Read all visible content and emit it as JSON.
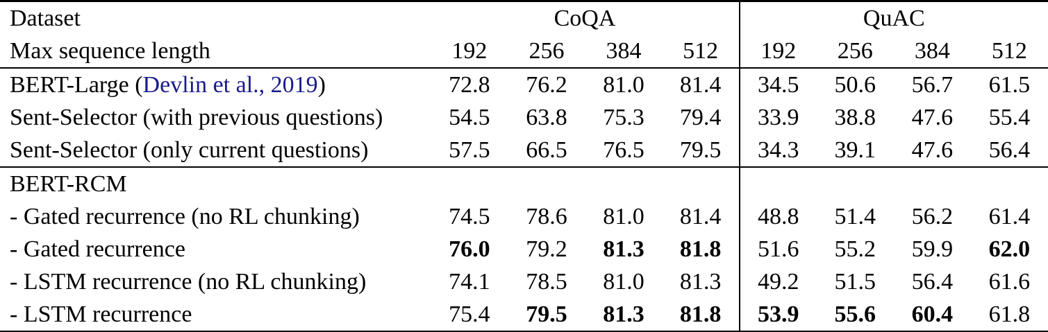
{
  "colors": {
    "citation_blue": "#1a1a8c",
    "rule_black": "#000000",
    "background": "#ffffff"
  },
  "header": {
    "dataset_label": "Dataset",
    "max_seq_label": "Max sequence length",
    "groups": [
      {
        "name": "CoQA",
        "seq_lengths": [
          "192",
          "256",
          "384",
          "512"
        ]
      },
      {
        "name": "QuAC",
        "seq_lengths": [
          "192",
          "256",
          "384",
          "512"
        ]
      }
    ]
  },
  "sections": [
    {
      "rows": [
        {
          "label_parts": [
            {
              "text": "BERT-Large (",
              "citation": false
            },
            {
              "text": "Devlin et al., 2019",
              "citation": true
            },
            {
              "text": ")",
              "citation": false
            }
          ],
          "values": [
            {
              "text": "72.8",
              "bold": false
            },
            {
              "text": "76.2",
              "bold": false
            },
            {
              "text": "81.0",
              "bold": false
            },
            {
              "text": "81.4",
              "bold": false
            },
            {
              "text": "34.5",
              "bold": false
            },
            {
              "text": "50.6",
              "bold": false
            },
            {
              "text": "56.7",
              "bold": false
            },
            {
              "text": "61.5",
              "bold": false
            }
          ]
        },
        {
          "label_parts": [
            {
              "text": "Sent-Selector (with previous questions)",
              "citation": false
            }
          ],
          "values": [
            {
              "text": "54.5",
              "bold": false
            },
            {
              "text": "63.8",
              "bold": false
            },
            {
              "text": "75.3",
              "bold": false
            },
            {
              "text": "79.4",
              "bold": false
            },
            {
              "text": "33.9",
              "bold": false
            },
            {
              "text": "38.8",
              "bold": false
            },
            {
              "text": "47.6",
              "bold": false
            },
            {
              "text": "55.4",
              "bold": false
            }
          ]
        },
        {
          "label_parts": [
            {
              "text": "Sent-Selector (only current questions)",
              "citation": false
            }
          ],
          "values": [
            {
              "text": "57.5",
              "bold": false
            },
            {
              "text": "66.5",
              "bold": false
            },
            {
              "text": "76.5",
              "bold": false
            },
            {
              "text": "79.5",
              "bold": false
            },
            {
              "text": "34.3",
              "bold": false
            },
            {
              "text": "39.1",
              "bold": false
            },
            {
              "text": "47.6",
              "bold": false
            },
            {
              "text": "56.4",
              "bold": false
            }
          ]
        }
      ]
    },
    {
      "rows": [
        {
          "label_parts": [
            {
              "text": "BERT-RCM",
              "citation": false
            }
          ],
          "values": []
        },
        {
          "label_parts": [
            {
              "text": "- Gated recurrence (no RL chunking)",
              "citation": false
            }
          ],
          "values": [
            {
              "text": "74.5",
              "bold": false
            },
            {
              "text": "78.6",
              "bold": false
            },
            {
              "text": "81.0",
              "bold": false
            },
            {
              "text": "81.4",
              "bold": false
            },
            {
              "text": "48.8",
              "bold": false
            },
            {
              "text": "51.4",
              "bold": false
            },
            {
              "text": "56.2",
              "bold": false
            },
            {
              "text": "61.4",
              "bold": false
            }
          ]
        },
        {
          "label_parts": [
            {
              "text": "- Gated recurrence",
              "citation": false
            }
          ],
          "values": [
            {
              "text": "76.0",
              "bold": true
            },
            {
              "text": "79.2",
              "bold": false
            },
            {
              "text": "81.3",
              "bold": true
            },
            {
              "text": "81.8",
              "bold": true
            },
            {
              "text": "51.6",
              "bold": false
            },
            {
              "text": "55.2",
              "bold": false
            },
            {
              "text": "59.9",
              "bold": false
            },
            {
              "text": "62.0",
              "bold": true
            }
          ]
        },
        {
          "label_parts": [
            {
              "text": "- LSTM recurrence (no RL chunking)",
              "citation": false
            }
          ],
          "values": [
            {
              "text": "74.1",
              "bold": false
            },
            {
              "text": "78.5",
              "bold": false
            },
            {
              "text": "81.0",
              "bold": false
            },
            {
              "text": "81.3",
              "bold": false
            },
            {
              "text": "49.2",
              "bold": false
            },
            {
              "text": "51.5",
              "bold": false
            },
            {
              "text": "56.4",
              "bold": false
            },
            {
              "text": "61.6",
              "bold": false
            }
          ]
        },
        {
          "label_parts": [
            {
              "text": "- LSTM recurrence",
              "citation": false
            }
          ],
          "values": [
            {
              "text": "75.4",
              "bold": false
            },
            {
              "text": "79.5",
              "bold": true
            },
            {
              "text": "81.3",
              "bold": true
            },
            {
              "text": "81.8",
              "bold": true
            },
            {
              "text": "53.9",
              "bold": true
            },
            {
              "text": "55.6",
              "bold": true
            },
            {
              "text": "60.4",
              "bold": true
            },
            {
              "text": "61.8",
              "bold": false
            }
          ]
        }
      ]
    }
  ]
}
